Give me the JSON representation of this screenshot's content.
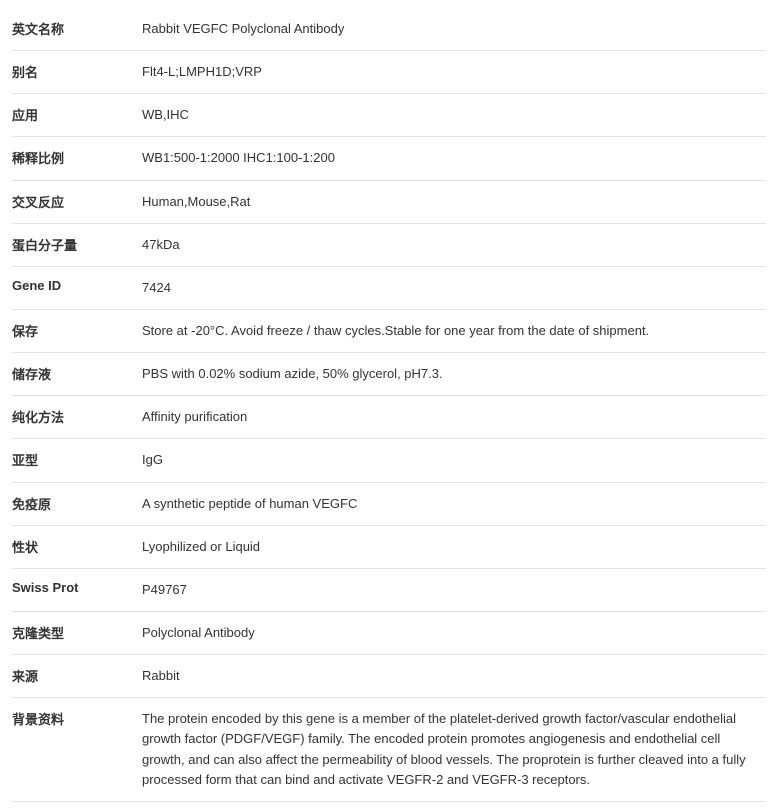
{
  "rows": [
    {
      "label": "英文名称",
      "value": "Rabbit VEGFC Polyclonal Antibody",
      "labelBold": true
    },
    {
      "label": "别名",
      "value": "Flt4-L;LMPH1D;VRP",
      "labelBold": true
    },
    {
      "label": "应用",
      "value": "WB,IHC",
      "labelBold": true
    },
    {
      "label": "稀释比例",
      "value": "WB1:500-1:2000 IHC1:100-1:200",
      "labelBold": true
    },
    {
      "label": "交叉反应",
      "value": "Human,Mouse,Rat",
      "labelBold": true
    },
    {
      "label": "蛋白分子量",
      "value": "47kDa",
      "labelBold": true
    },
    {
      "label": "Gene ID",
      "value": "7424",
      "labelBold": true
    },
    {
      "label": "保存",
      "value": "Store at -20°C. Avoid freeze / thaw cycles.Stable for one year from the date of shipment.",
      "labelBold": true
    },
    {
      "label": "储存液",
      "value": "PBS with 0.02% sodium azide, 50% glycerol, pH7.3.",
      "labelBold": true
    },
    {
      "label": "纯化方法",
      "value": "Affinity purification",
      "labelBold": true
    },
    {
      "label": "亚型",
      "value": "IgG",
      "labelBold": true
    },
    {
      "label": "免疫原",
      "value": "A synthetic peptide of human VEGFC",
      "labelBold": true
    },
    {
      "label": "性状",
      "value": "Lyophilized or Liquid",
      "labelBold": true
    },
    {
      "label": "Swiss Prot",
      "value": "P49767",
      "labelBold": true
    },
    {
      "label": "克隆类型",
      "value": "Polyclonal Antibody",
      "labelBold": true
    },
    {
      "label": "来源",
      "value": "Rabbit",
      "labelBold": true
    },
    {
      "label": "背景资料",
      "value": "The protein encoded by this gene is a member of the platelet-derived growth factor/vascular endothelial growth factor (PDGF/VEGF) family. The encoded protein promotes angiogenesis and endothelial cell growth, and can also affect the permeability of blood vessels. The proprotein is further cleaved into a fully processed form that can bind and activate VEGFR-2 and VEGFR-3 receptors.",
      "labelBold": true
    }
  ],
  "styling": {
    "border_color": "#e3e3e3",
    "text_color": "#333333",
    "background_color": "#ffffff",
    "label_fontsize": 13,
    "value_fontsize": 13,
    "label_weight": "bold",
    "row_padding_v": 11,
    "label_width": 130,
    "line_height": 1.55,
    "font_family": "Microsoft YaHei"
  }
}
